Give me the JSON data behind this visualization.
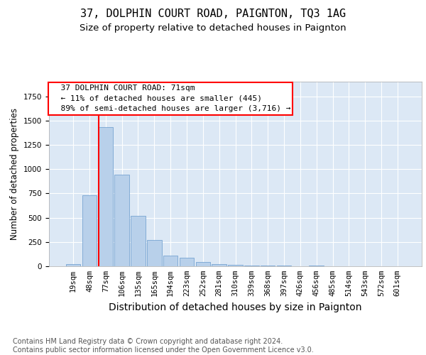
{
  "title1": "37, DOLPHIN COURT ROAD, PAIGNTON, TQ3 1AG",
  "title2": "Size of property relative to detached houses in Paignton",
  "xlabel": "Distribution of detached houses by size in Paignton",
  "ylabel": "Number of detached properties",
  "categories": [
    "19sqm",
    "48sqm",
    "77sqm",
    "106sqm",
    "135sqm",
    "165sqm",
    "194sqm",
    "223sqm",
    "252sqm",
    "281sqm",
    "310sqm",
    "339sqm",
    "368sqm",
    "397sqm",
    "426sqm",
    "456sqm",
    "485sqm",
    "514sqm",
    "543sqm",
    "572sqm",
    "601sqm"
  ],
  "values": [
    20,
    730,
    1430,
    940,
    520,
    270,
    110,
    90,
    45,
    25,
    15,
    10,
    8,
    5,
    3,
    10,
    2,
    0,
    0,
    0,
    0
  ],
  "bar_color": "#b8d0ea",
  "bar_edge_color": "#6699cc",
  "red_line_index": 2,
  "ylim": [
    0,
    1900
  ],
  "annotation_text": "  37 DOLPHIN COURT ROAD: 71sqm\n  ← 11% of detached houses are smaller (445)\n  89% of semi-detached houses are larger (3,716) →",
  "footnote": "Contains HM Land Registry data © Crown copyright and database right 2024.\nContains public sector information licensed under the Open Government Licence v3.0.",
  "title1_fontsize": 11,
  "title2_fontsize": 9.5,
  "xlabel_fontsize": 10,
  "ylabel_fontsize": 8.5,
  "tick_fontsize": 7.5,
  "annotation_fontsize": 8,
  "footnote_fontsize": 7
}
